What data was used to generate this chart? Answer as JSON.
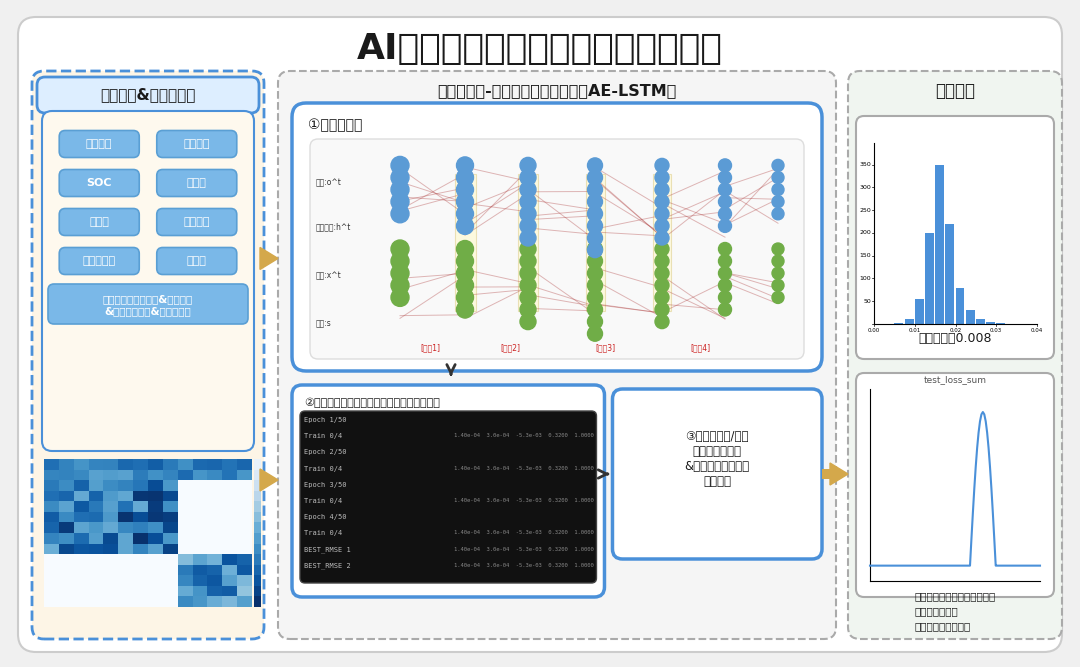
{
  "title": "AI人工智能算法分析大数据判断析锂",
  "title_fontsize": 26,
  "bg_color": "#f0f0f0",
  "panel_bg": "#ffffff",
  "section1_title": "原始数据&数据预处理",
  "section2_title": "自动编码器-长短期记忆神经网络（AE-LSTM）",
  "section3_title": "算法结果",
  "section1_bg": "#fdf5e6",
  "section2_bg": "#f8f8f8",
  "section3_bg": "#f0f5f0",
  "section1_border": "#4a90d9",
  "section2_border": "#999999",
  "section3_border": "#999999",
  "blue_btn_color": "#7ab8e8",
  "blue_btn_border": "#5a9fd4",
  "buttons": [
    "单体电压",
    "单体温度",
    "SOC",
    "总电流",
    "总电压",
    "单体压差",
    "充放电状态",
    "时间戳"
  ],
  "long_btn_text": "时间序列数据预处理&筛选特征\n&设置滑动窗口&数据标准化",
  "step1_text": "①构建模型。",
  "step2_text": "②输入训练集拟合模型（含检验集评估误差）",
  "step3_text": "③输入测试集/需要\n预测的数据预测\n&判断异常指数（预\n测误差）",
  "result1_text": "误差：平均0.008",
  "result2_text": "纵坐标：异常指数（误差值）\n横坐标：数据点\n结论：成功找出异常",
  "arrow_color": "#d4a84b",
  "dark_arrow_color": "#333333"
}
